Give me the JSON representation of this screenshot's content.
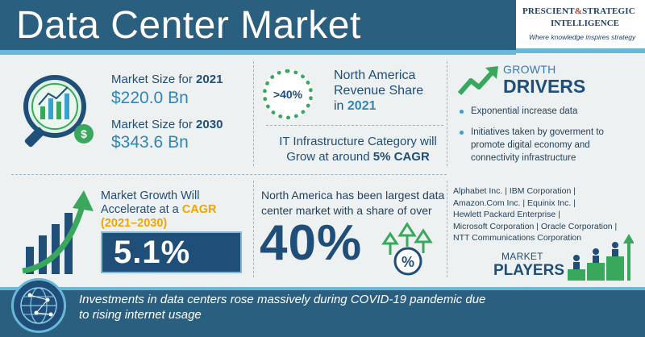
{
  "header": {
    "title": "Data Center Market",
    "logo_line1_a": "PRESCIENT",
    "logo_amp": "&",
    "logo_line1_b": "STRATEGIC",
    "logo_line2": "INTELLIGENCE",
    "logo_tagline": "Where knowledge inspires strategy"
  },
  "market_size": {
    "label_2021": "Market Size for",
    "year_2021": "2021",
    "value_2021": "$220.0 Bn",
    "label_2030": "Market Size for",
    "year_2030": "2030",
    "value_2030": "$343.6 Bn"
  },
  "north_america_share": {
    "badge": ">40%",
    "line1": "North America",
    "line2": "Revenue Share",
    "line3_prefix": "in",
    "year": "2021"
  },
  "it_infrastructure": {
    "text": "IT Infrastructure Category will Grow at around",
    "cagr": "5% CAGR"
  },
  "growth_drivers": {
    "label_top": "GROWTH",
    "label_bottom": "DRIVERS",
    "items": [
      "Exponential increase data",
      "Initiatives taken by goverment to promote digital economy and connectivity infrastructure"
    ]
  },
  "market_growth": {
    "text_prefix": "Market Growth Will Accelerate at a",
    "cagr": "CAGR",
    "years": "(2021–2030)",
    "value": "5.1%"
  },
  "north_america_largest": {
    "text": "North America has been largest data center market with a share of over",
    "value": "40%"
  },
  "market_players": {
    "lines": [
      "Alphabet Inc. | IBM Corporation |",
      "Amazon.Com Inc. | Equinix Inc. |",
      "Hewlett Packard Enterprise |",
      "Microsoft Corporation | Oracle Corporation |",
      "NTT Communications Corporation"
    ],
    "label_top": "MARKET",
    "label_bottom": "PLAYERS"
  },
  "footer": {
    "text": "Investments in data centers rose massively during COVID-19 pandemic due to rising internet usage"
  },
  "colors": {
    "header_band": "#2b5f7f",
    "accent_light": "#69b7d9",
    "navy": "#1f4e79",
    "green": "#3aa85c",
    "orange": "#f0a500"
  }
}
